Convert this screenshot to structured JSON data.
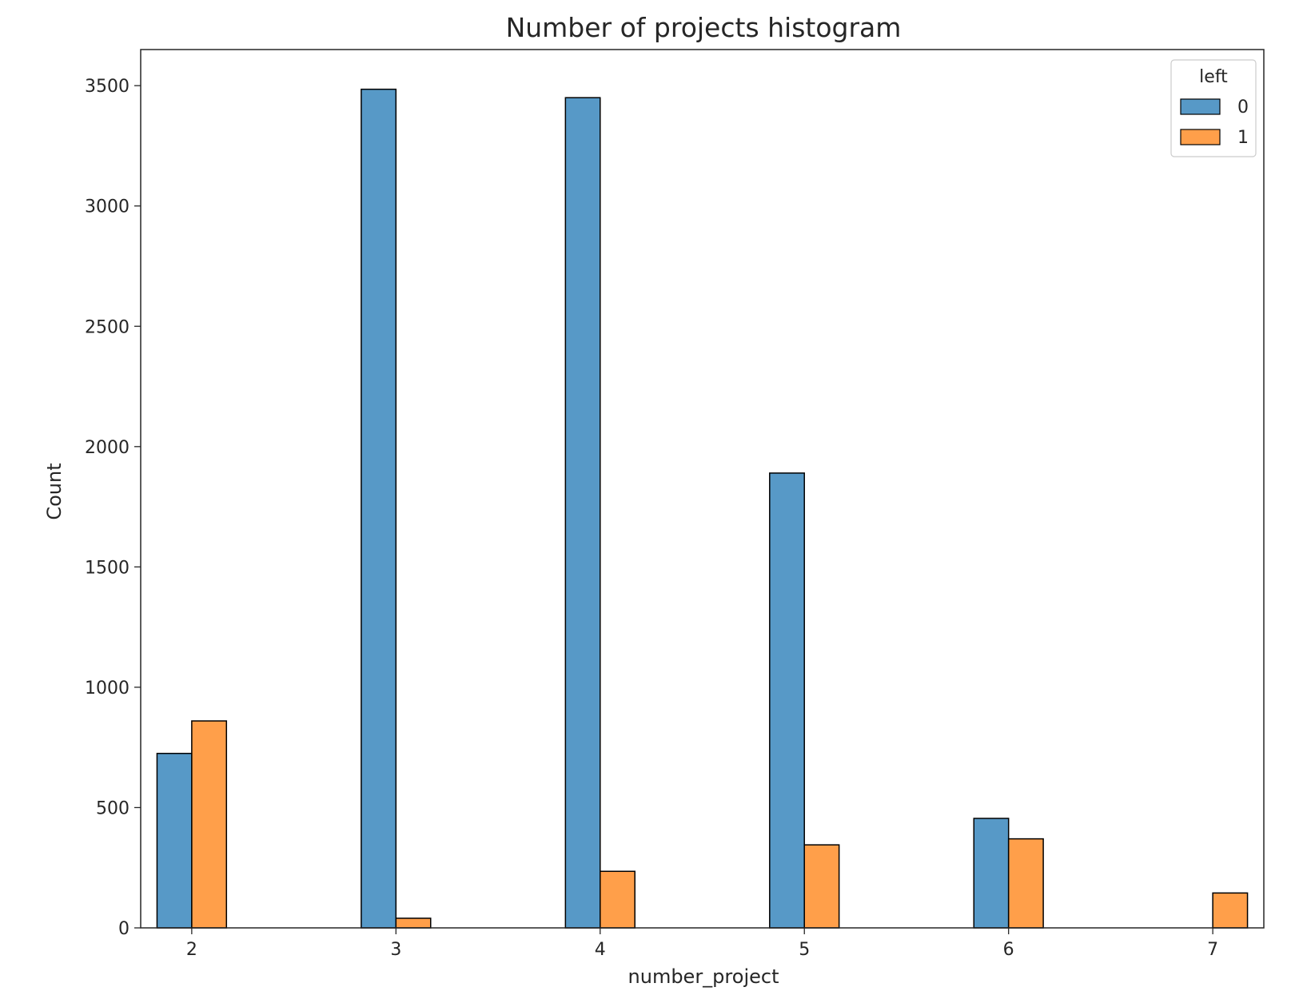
{
  "chart_data": {
    "type": "bar",
    "title": "Number of projects histogram",
    "xlabel": "number_project",
    "ylabel": "Count",
    "categories": [
      "2",
      "3",
      "4",
      "5",
      "6",
      "7"
    ],
    "x": [
      2,
      3,
      4,
      5,
      6,
      7
    ],
    "xlim": [
      1.75,
      7.25
    ],
    "ylim": [
      0,
      3650
    ],
    "yticks": [
      0,
      500,
      1000,
      1500,
      2000,
      2500,
      3000,
      3500
    ],
    "legend": {
      "title": "left",
      "position": "top-right"
    },
    "grid": false,
    "series": [
      {
        "name": "0",
        "color": "#5799c7",
        "values": [
          725,
          3485,
          3450,
          1890,
          455,
          0
        ]
      },
      {
        "name": "1",
        "color": "#ff9f4a",
        "values": [
          860,
          40,
          235,
          345,
          370,
          145
        ]
      }
    ]
  }
}
